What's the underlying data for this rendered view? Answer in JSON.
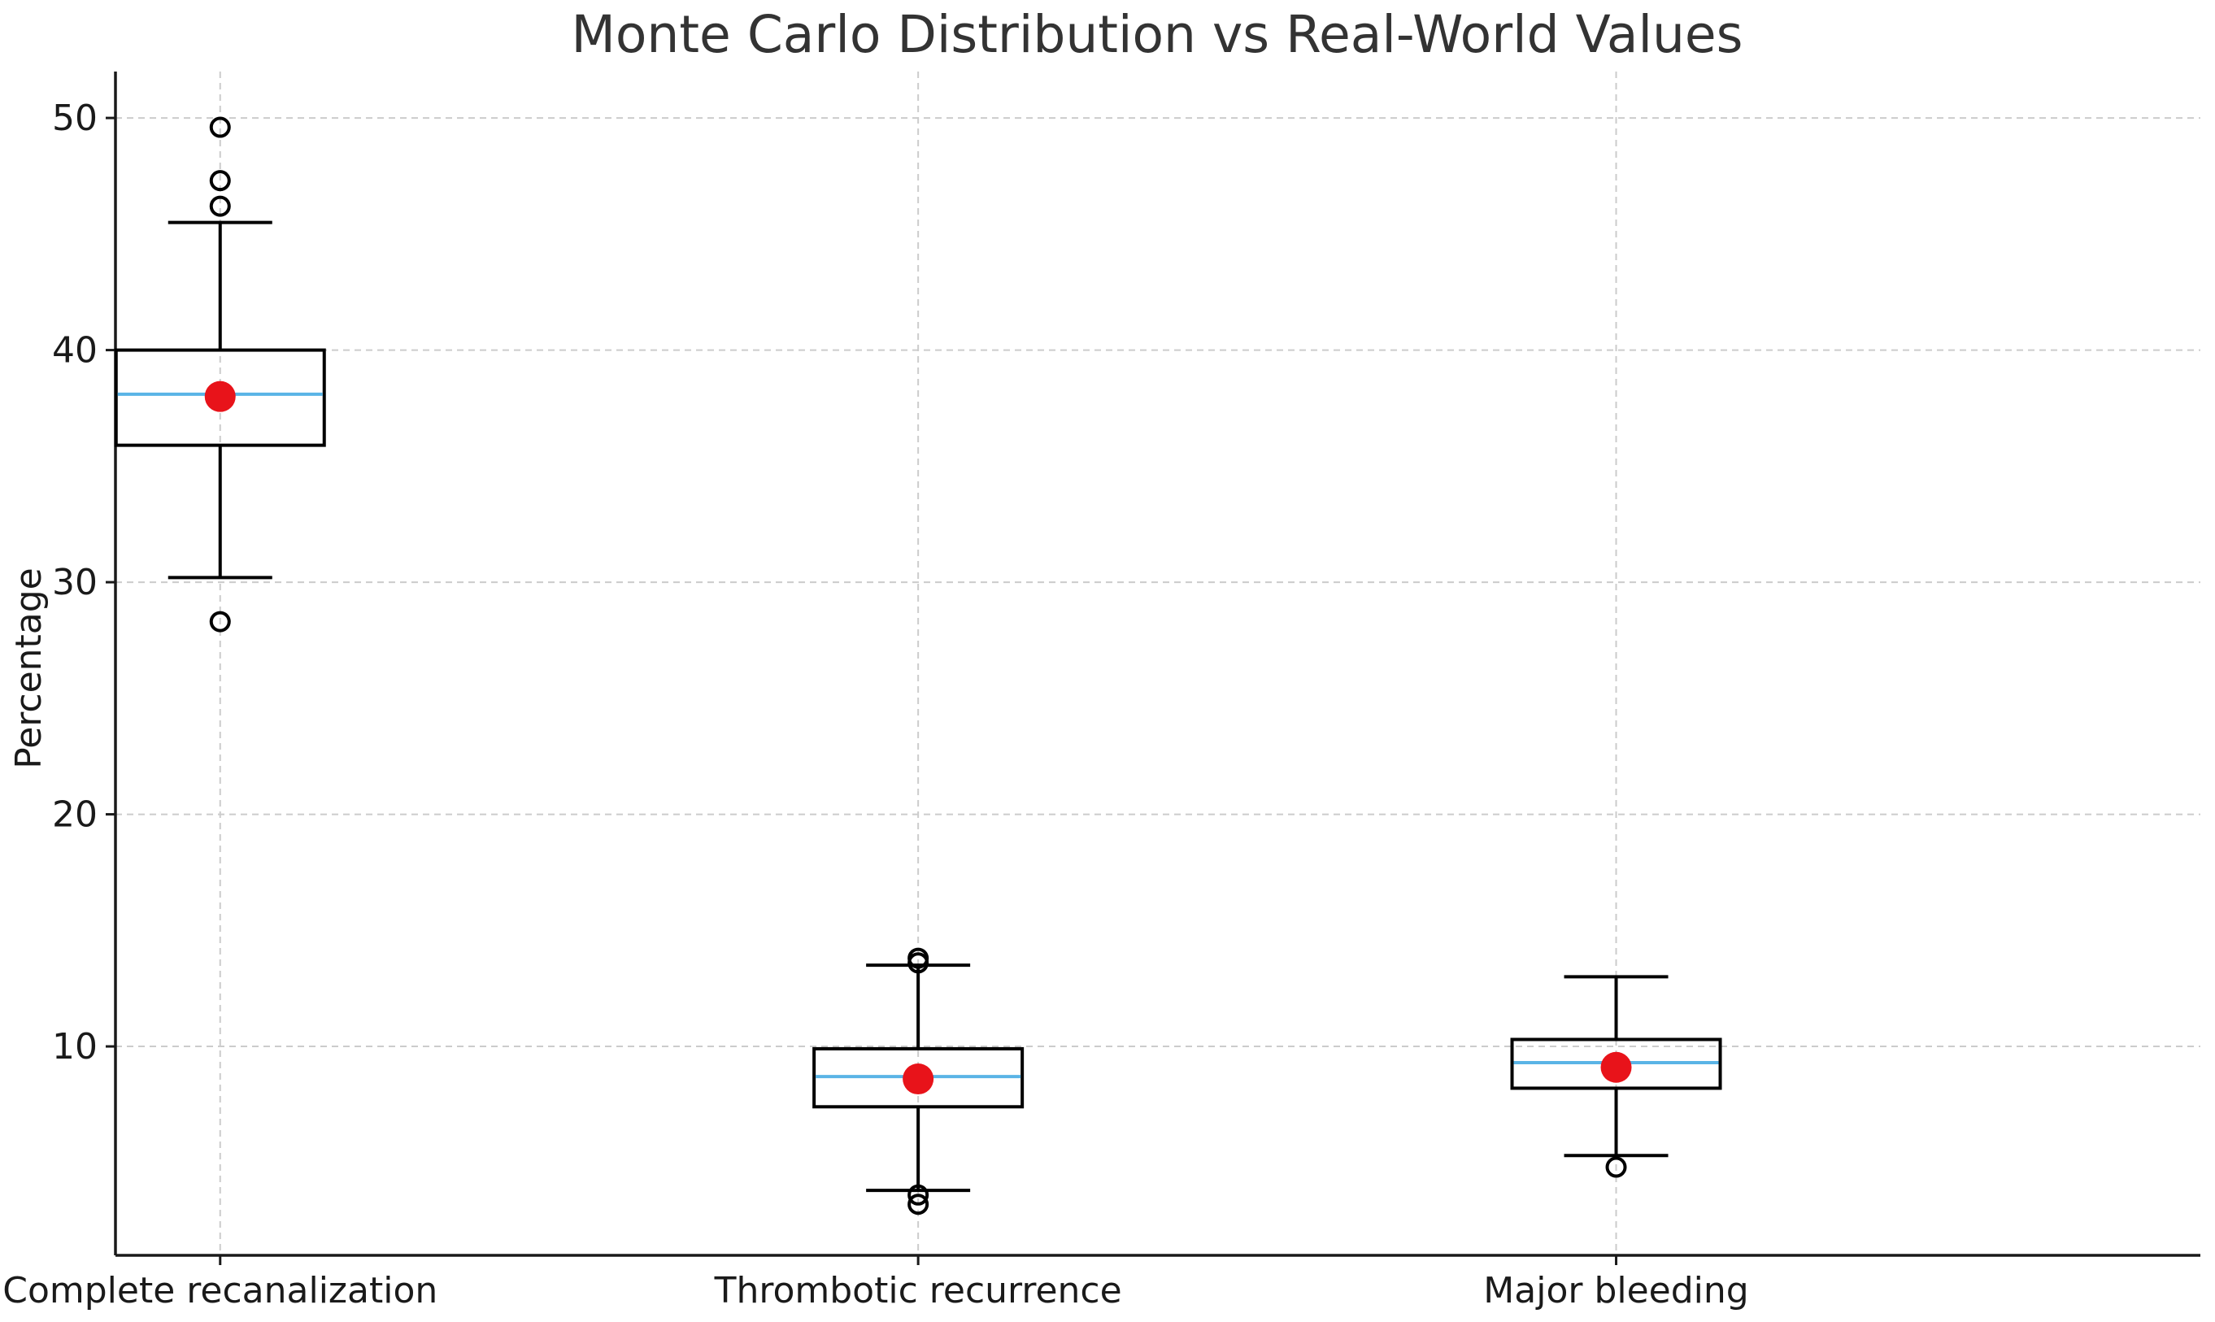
{
  "chart_data": {
    "type": "box",
    "title": "Monte Carlo Distribution vs Real-World Values",
    "xlabel": "",
    "ylabel": "Percentage",
    "ylim": [
      1,
      52
    ],
    "yticks": [
      10,
      20,
      30,
      40,
      50
    ],
    "grid": true,
    "categories": [
      "Complete recanalization",
      "Thrombotic recurrence",
      "Major bleeding"
    ],
    "boxes": [
      {
        "category": "Complete recanalization",
        "q1": 35.9,
        "median": 38.1,
        "q3": 40.0,
        "whisker_low": 30.2,
        "whisker_high": 45.5,
        "fliers": [
          28.3,
          46.2,
          47.3,
          49.6
        ],
        "real_world": 38.0
      },
      {
        "category": "Thrombotic recurrence",
        "q1": 7.4,
        "median": 8.7,
        "q3": 9.9,
        "whisker_low": 3.8,
        "whisker_high": 13.5,
        "fliers": [
          3.2,
          3.6,
          13.6,
          13.8
        ],
        "real_world": 8.6
      },
      {
        "category": "Major bleeding",
        "q1": 8.2,
        "median": 9.3,
        "q3": 10.3,
        "whisker_low": 5.3,
        "whisker_high": 13.0,
        "fliers": [
          4.8
        ],
        "real_world": 9.1
      }
    ],
    "colors": {
      "median": "#5ab4e6",
      "real_world": "#e8131a",
      "box": "#000000",
      "grid": "#cccccc"
    }
  }
}
